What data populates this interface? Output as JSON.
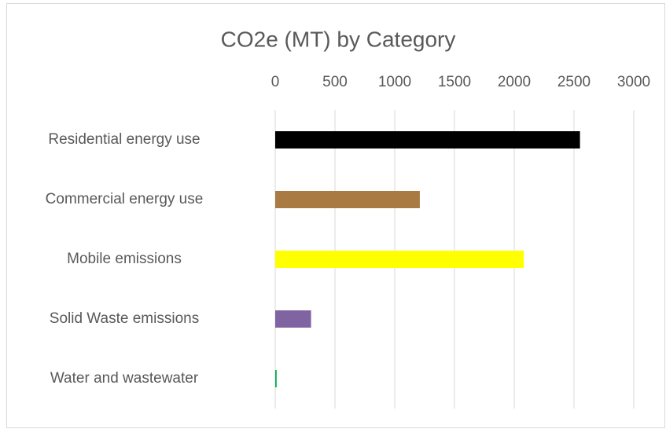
{
  "chart_data": {
    "type": "bar",
    "orientation": "horizontal",
    "title": "CO2e (MT) by Category",
    "categories": [
      "Residential energy use",
      "Commercial energy use",
      "Mobile emissions",
      "Solid Waste emissions",
      "Water and wastewater"
    ],
    "values": [
      2550,
      1210,
      2080,
      300,
      12
    ],
    "colors": [
      "#000000",
      "#a97b43",
      "#ffff00",
      "#8064a2",
      "#00b050"
    ],
    "xlim": [
      0,
      3200
    ],
    "xticks": [
      0,
      500,
      1000,
      1500,
      2000,
      2500,
      3000
    ],
    "grid": true
  }
}
